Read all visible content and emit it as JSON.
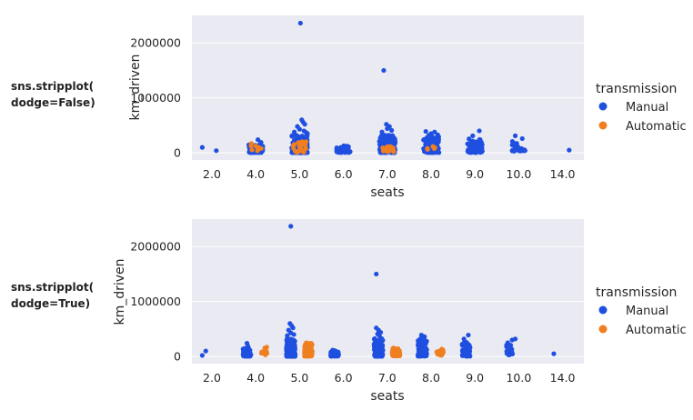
{
  "colors": {
    "manual": "#1f4fe0",
    "automatic": "#ef7f20",
    "axes_bg": "#eaeaf2",
    "grid": "#ffffff"
  },
  "chart_data": [
    {
      "type": "scatter",
      "kind": "stripplot",
      "side_label_lines": [
        "sns.stripplot(",
        "dodge=False)"
      ],
      "dodge": false,
      "xlabel": "seats",
      "ylabel": "km_driven",
      "categories": [
        "2.0",
        "4.0",
        "5.0",
        "6.0",
        "7.0",
        "8.0",
        "9.0",
        "10.0",
        "14.0"
      ],
      "yticks": [
        0,
        1000000,
        2000000
      ],
      "ytick_labels": [
        "0",
        "1000000",
        "2000000"
      ],
      "ylim": [
        -130000,
        2500000
      ],
      "grid": true,
      "legend": {
        "title": "transmission",
        "placement": "right",
        "entries": [
          {
            "label": "Manual",
            "color_key": "manual"
          },
          {
            "label": "Automatic",
            "color_key": "automatic"
          }
        ]
      },
      "series": [
        {
          "name": "Manual",
          "color_key": "manual",
          "strips": [
            {
              "category": "2.0",
              "points": [
                [
                  -0.22,
                  100000
                ],
                [
                  0.1,
                  40000
                ]
              ]
            },
            {
              "category": "4.0",
              "cluster": {
                "count": 70,
                "min": 5000,
                "max": 150000,
                "width": 0.32
              },
              "points": [
                [
                  0.05,
                  240000
                ],
                [
                  0.12,
                  190000
                ],
                [
                  -0.1,
                  165000
                ]
              ]
            },
            {
              "category": "5.0",
              "cluster": {
                "count": 200,
                "min": 2000,
                "max": 320000,
                "width": 0.36
              },
              "points": [
                [
                  0.02,
                  2360000
                ],
                [
                  0.05,
                  600000
                ],
                [
                  0.08,
                  560000
                ],
                [
                  0.12,
                  520000
                ],
                [
                  -0.05,
                  480000
                ],
                [
                  0.0,
                  430000
                ],
                [
                  0.1,
                  400000
                ],
                [
                  -0.12,
                  380000
                ],
                [
                  0.15,
                  370000
                ],
                [
                  0.18,
                  350000
                ]
              ]
            },
            {
              "category": "6.0",
              "cluster": {
                "count": 40,
                "min": 5000,
                "max": 130000,
                "width": 0.34
              },
              "points": []
            },
            {
              "category": "7.0",
              "cluster": {
                "count": 170,
                "min": 3000,
                "max": 330000,
                "width": 0.36
              },
              "points": [
                [
                  -0.08,
                  1500000
                ],
                [
                  -0.02,
                  520000
                ],
                [
                  0.05,
                  480000
                ],
                [
                  0.0,
                  440000
                ],
                [
                  0.1,
                  410000
                ],
                [
                  -0.12,
                  380000
                ]
              ]
            },
            {
              "category": "8.0",
              "cluster": {
                "count": 100,
                "min": 5000,
                "max": 300000,
                "width": 0.36
              },
              "points": [
                [
                  -0.12,
                  390000
                ],
                [
                  0.08,
                  380000
                ],
                [
                  0.0,
                  350000
                ],
                [
                  0.15,
                  330000
                ],
                [
                  -0.05,
                  320000
                ]
              ]
            },
            {
              "category": "9.0",
              "cluster": {
                "count": 70,
                "min": 5000,
                "max": 260000,
                "width": 0.34
              },
              "points": [
                [
                  0.1,
                  400000
                ],
                [
                  -0.05,
                  310000
                ]
              ]
            },
            {
              "category": "10.0",
              "cluster": {
                "count": 22,
                "min": 30000,
                "max": 220000,
                "width": 0.3
              },
              "points": [
                [
                  -0.08,
                  310000
                ],
                [
                  0.08,
                  260000
                ]
              ]
            },
            {
              "category": "14.0",
              "points": [
                [
                  0.15,
                  50000
                ]
              ]
            }
          ]
        },
        {
          "name": "Automatic",
          "color_key": "automatic",
          "strips": [
            {
              "category": "4.0",
              "cluster": {
                "count": 8,
                "min": 30000,
                "max": 160000,
                "width": 0.25
              },
              "points": [
                [
                  -0.1,
                  170000
                ]
              ]
            },
            {
              "category": "5.0",
              "cluster": {
                "count": 22,
                "min": 10000,
                "max": 220000,
                "width": 0.3
              },
              "points": []
            },
            {
              "category": "7.0",
              "cluster": {
                "count": 16,
                "min": 20000,
                "max": 140000,
                "width": 0.3
              },
              "points": [
                [
                  0.08,
                  110000
                ]
              ]
            },
            {
              "category": "8.0",
              "cluster": {
                "count": 5,
                "min": 50000,
                "max": 120000,
                "width": 0.25
              },
              "points": []
            }
          ]
        }
      ]
    },
    {
      "type": "scatter",
      "kind": "stripplot",
      "side_label_lines": [
        "sns.stripplot(",
        "dodge=True)"
      ],
      "dodge": true,
      "xlabel": "seats",
      "ylabel": "km_driven",
      "categories": [
        "2.0",
        "4.0",
        "5.0",
        "6.0",
        "7.0",
        "8.0",
        "9.0",
        "10.0",
        "14.0"
      ],
      "yticks": [
        0,
        1000000,
        2000000
      ],
      "ytick_labels": [
        "0",
        "1000000",
        "2000000"
      ],
      "ylim": [
        -130000,
        2500000
      ],
      "grid": true,
      "legend": {
        "title": "transmission",
        "placement": "right",
        "entries": [
          {
            "label": "Manual",
            "color_key": "manual"
          },
          {
            "label": "Automatic",
            "color_key": "automatic"
          }
        ]
      },
      "series": [
        {
          "name": "Manual",
          "color_key": "manual",
          "strips": [
            {
              "category": "2.0",
              "points": [
                [
                  -0.22,
                  20000
                ],
                [
                  -0.14,
                  100000
                ]
              ]
            },
            {
              "category": "4.0",
              "cluster": {
                "count": 70,
                "min": 5000,
                "max": 150000,
                "width": 0.18
              },
              "points": [
                [
                  -0.2,
                  240000
                ],
                [
                  -0.18,
                  190000
                ]
              ]
            },
            {
              "category": "5.0",
              "cluster": {
                "count": 200,
                "min": 2000,
                "max": 320000,
                "width": 0.2
              },
              "points": [
                [
                  -0.2,
                  2370000
                ],
                [
                  -0.22,
                  600000
                ],
                [
                  -0.18,
                  560000
                ],
                [
                  -0.15,
                  520000
                ],
                [
                  -0.25,
                  480000
                ],
                [
                  -0.2,
                  430000
                ],
                [
                  -0.13,
                  400000
                ],
                [
                  -0.28,
                  380000
                ]
              ]
            },
            {
              "category": "6.0",
              "cluster": {
                "count": 40,
                "min": 5000,
                "max": 130000,
                "width": 0.18
              },
              "points": []
            },
            {
              "category": "7.0",
              "cluster": {
                "count": 170,
                "min": 3000,
                "max": 330000,
                "width": 0.2
              },
              "points": [
                [
                  -0.25,
                  1500000
                ],
                [
                  -0.25,
                  520000
                ],
                [
                  -0.2,
                  480000
                ],
                [
                  -0.15,
                  440000
                ],
                [
                  -0.22,
                  410000
                ],
                [
                  -0.18,
                  380000
                ]
              ]
            },
            {
              "category": "8.0",
              "cluster": {
                "count": 100,
                "min": 5000,
                "max": 300000,
                "width": 0.2
              },
              "points": [
                [
                  -0.22,
                  390000
                ],
                [
                  -0.15,
                  360000
                ],
                [
                  -0.2,
                  330000
                ],
                [
                  -0.25,
                  320000
                ]
              ]
            },
            {
              "category": "9.0",
              "cluster": {
                "count": 70,
                "min": 5000,
                "max": 260000,
                "width": 0.18
              },
              "points": [
                [
                  -0.15,
                  390000
                ],
                [
                  -0.25,
                  320000
                ]
              ]
            },
            {
              "category": "10.0",
              "cluster": {
                "count": 22,
                "min": 30000,
                "max": 220000,
                "width": 0.16
              },
              "points": [
                [
                  -0.15,
                  300000
                ],
                [
                  -0.08,
                  320000
                ],
                [
                  -0.25,
                  250000
                ]
              ]
            },
            {
              "category": "14.0",
              "points": [
                [
                  -0.2,
                  50000
                ]
              ]
            }
          ]
        },
        {
          "name": "Automatic",
          "color_key": "automatic",
          "strips": [
            {
              "category": "4.0",
              "cluster": {
                "count": 9,
                "min": 30000,
                "max": 160000,
                "width": 0.15
              },
              "points": [
                [
                  0.25,
                  170000
                ]
              ]
            },
            {
              "category": "5.0",
              "cluster": {
                "count": 90,
                "min": 5000,
                "max": 250000,
                "width": 0.18
              },
              "points": []
            },
            {
              "category": "7.0",
              "cluster": {
                "count": 45,
                "min": 10000,
                "max": 170000,
                "width": 0.18
              },
              "points": []
            },
            {
              "category": "8.0",
              "cluster": {
                "count": 20,
                "min": 20000,
                "max": 140000,
                "width": 0.16
              },
              "points": []
            }
          ]
        }
      ]
    }
  ]
}
